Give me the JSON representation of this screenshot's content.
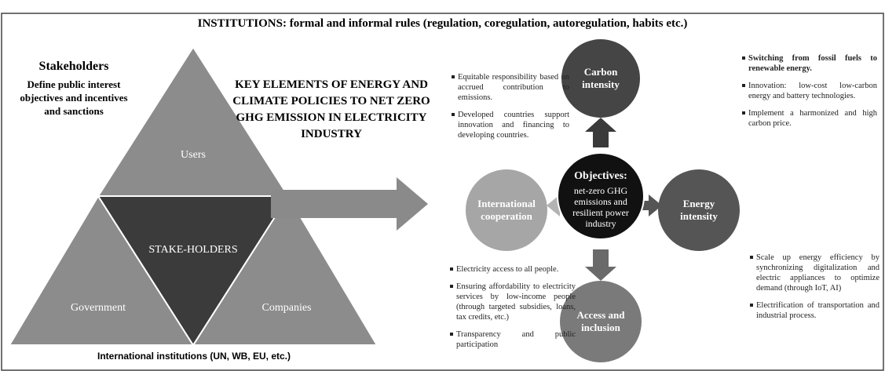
{
  "header": "INSTITUTIONS: formal and informal rules (regulation, coregulation, autoregulation, habits etc.)",
  "stakeholders": {
    "title": "Stakeholders",
    "subtitle": "Define public interest objectives and incentives and sanctions"
  },
  "triangle": {
    "top": "Users",
    "center": "STAKE-HOLDERS",
    "left": "Government",
    "right": "Companies"
  },
  "caption": "International institutions (UN, WB, EU, etc.)",
  "key_elements": "KEY ELEMENTS OF ENERGY AND CLIMATE POLICIES TO NET ZERO GHG EMISSION IN ELECTRICITY INDUSTRY",
  "circles": {
    "center_title": "Objectives:",
    "center_text": "net-zero GHG emissions and resilient power industry",
    "carbon": "Carbon intensity",
    "energy": "Energy intensity",
    "access": "Access and inclusion",
    "international": "International cooperation"
  },
  "bullets": {
    "international": [
      "Equitable responsibility based on accrued contribution to emissions.",
      "Developed countries support innovation and financing to developing countries."
    ],
    "carbon": [
      "Switching from fossil fuels to renewable energy.",
      "Innovation: low-cost low-carbon energy and battery technologies.",
      "Implement a harmonized and high carbon price."
    ],
    "access": [
      "Electricity access to all people.",
      "Ensuring affordability to electricity services by low-income people (through targeted subsidies, loans, tax credits, etc.)",
      "Transparency and public participation"
    ],
    "energy": [
      "Scale up energy efficiency by synchronizing digitalization and electric appliances to optimize demand (through IoT, AI)",
      "Electrification of transportation and industrial process."
    ]
  }
}
